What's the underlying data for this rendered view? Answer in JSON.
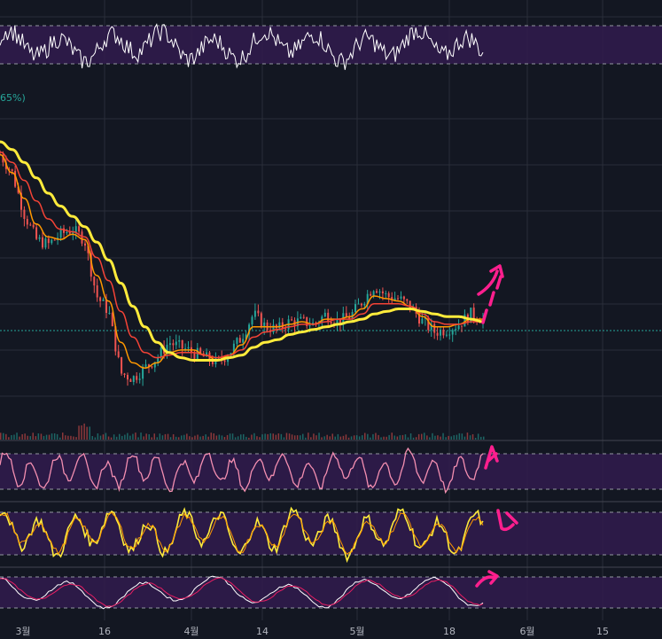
{
  "colors": {
    "background": "#131722",
    "grid": "#2a2e39",
    "band_fill": "#311b4d",
    "price_up": "#26a69a",
    "price_down": "#ef5350",
    "ma_fast": "#ff9800",
    "ma_mid": "#f44336",
    "ma_slow": "#ffeb3b",
    "osc_line": "#ffffff",
    "stoch_line": "#f48fb1",
    "annotation": "#ff1f8e"
  },
  "price_marker_label": "65%)",
  "chart_data": {
    "type": "line",
    "x_tick_labels": [
      "3월",
      "16",
      "4월",
      "14",
      "5월",
      "18",
      "6월",
      "15"
    ],
    "grid": true,
    "main_pane": {
      "candles_close": [
        0.95,
        0.88,
        0.72,
        0.62,
        0.6,
        0.64,
        0.66,
        0.62,
        0.4,
        0.34,
        0.1,
        0.08,
        0.12,
        0.16,
        0.22,
        0.2,
        0.18,
        0.16,
        0.14,
        0.18,
        0.24,
        0.33,
        0.28,
        0.27,
        0.3,
        0.3,
        0.29,
        0.33,
        0.3,
        0.32,
        0.38,
        0.44,
        0.4,
        0.39,
        0.36,
        0.3,
        0.26,
        0.27,
        0.29,
        0.33,
        0.31
      ],
      "ma_fast": [
        0.95,
        0.88,
        0.78,
        0.68,
        0.63,
        0.62,
        0.64,
        0.62,
        0.48,
        0.38,
        0.22,
        0.14,
        0.12,
        0.14,
        0.18,
        0.19,
        0.19,
        0.17,
        0.15,
        0.17,
        0.21,
        0.28,
        0.28,
        0.28,
        0.29,
        0.3,
        0.29,
        0.31,
        0.31,
        0.32,
        0.35,
        0.4,
        0.39,
        0.38,
        0.36,
        0.32,
        0.28,
        0.28,
        0.29,
        0.31,
        0.31
      ],
      "ma_mid": [
        0.96,
        0.92,
        0.85,
        0.77,
        0.7,
        0.66,
        0.65,
        0.63,
        0.55,
        0.46,
        0.34,
        0.24,
        0.18,
        0.16,
        0.17,
        0.18,
        0.18,
        0.17,
        0.16,
        0.17,
        0.19,
        0.24,
        0.26,
        0.27,
        0.28,
        0.29,
        0.29,
        0.3,
        0.31,
        0.31,
        0.33,
        0.37,
        0.37,
        0.37,
        0.36,
        0.33,
        0.3,
        0.29,
        0.29,
        0.3,
        0.3
      ],
      "ma_slow": [
        1.0,
        0.97,
        0.92,
        0.86,
        0.8,
        0.75,
        0.71,
        0.67,
        0.61,
        0.54,
        0.45,
        0.36,
        0.28,
        0.22,
        0.18,
        0.16,
        0.15,
        0.15,
        0.15,
        0.16,
        0.17,
        0.2,
        0.22,
        0.23,
        0.25,
        0.26,
        0.27,
        0.28,
        0.29,
        0.3,
        0.31,
        0.33,
        0.34,
        0.35,
        0.35,
        0.34,
        0.33,
        0.32,
        0.32,
        0.31,
        0.3
      ]
    },
    "oscillator_panes": [
      "top-oscillator",
      "rsi-oscillator",
      "cci-oscillator",
      "stochastic-oscillator"
    ]
  }
}
